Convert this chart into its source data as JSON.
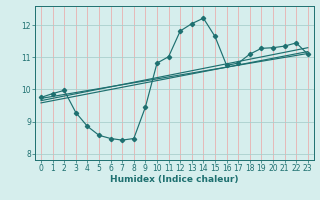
{
  "xlabel": "Humidex (Indice chaleur)",
  "xlim": [
    -0.5,
    23.5
  ],
  "ylim": [
    7.8,
    12.6
  ],
  "xticks": [
    0,
    1,
    2,
    3,
    4,
    5,
    6,
    7,
    8,
    9,
    10,
    11,
    12,
    13,
    14,
    15,
    16,
    17,
    18,
    19,
    20,
    21,
    22,
    23
  ],
  "yticks": [
    8,
    9,
    10,
    11,
    12
  ],
  "bg_color": "#d6eeed",
  "grid_color_v": "#e8b0b0",
  "grid_color_h": "#aacfcd",
  "line_color": "#1e7070",
  "line1_x": [
    0,
    1,
    2,
    3,
    4,
    5,
    6,
    7,
    8,
    9,
    10,
    11,
    12,
    13,
    14,
    15,
    16,
    17,
    18,
    19,
    20,
    21,
    22,
    23
  ],
  "line1_y": [
    9.75,
    9.87,
    9.97,
    9.28,
    8.85,
    8.57,
    8.47,
    8.42,
    8.47,
    9.45,
    10.82,
    11.02,
    11.82,
    12.05,
    12.22,
    11.65,
    10.75,
    10.82,
    11.1,
    11.28,
    11.3,
    11.35,
    11.45,
    11.1
  ],
  "line2_x": [
    0,
    23
  ],
  "line2_y": [
    9.72,
    11.12
  ],
  "line3_x": [
    0,
    23
  ],
  "line3_y": [
    9.58,
    11.18
  ],
  "line4_x": [
    0,
    23
  ],
  "line4_y": [
    9.65,
    11.3
  ]
}
